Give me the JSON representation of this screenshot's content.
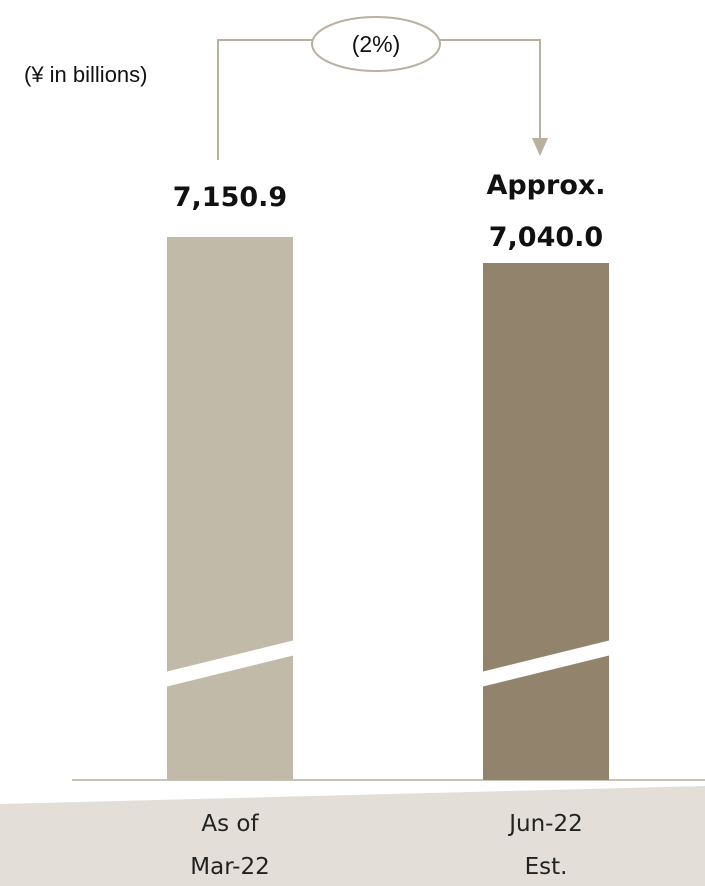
{
  "chart_data": {
    "type": "bar",
    "unit_label": "(¥ in billions)",
    "categories": [
      [
        "As of",
        "Mar-22"
      ],
      [
        "Jun-22",
        "Est."
      ]
    ],
    "values": [
      7150.9,
      7040.0
    ],
    "value_labels": [
      [
        "7,150.9"
      ],
      [
        "Approx.",
        "7,040.0"
      ]
    ],
    "change_label": "(2%)",
    "axis_break": true,
    "colors": {
      "bar1": "#c2baa8",
      "bar2": "#92836d",
      "connector": "#b9b0a0",
      "band": "#e3dfd8",
      "axis": "#c8c2b6"
    }
  }
}
